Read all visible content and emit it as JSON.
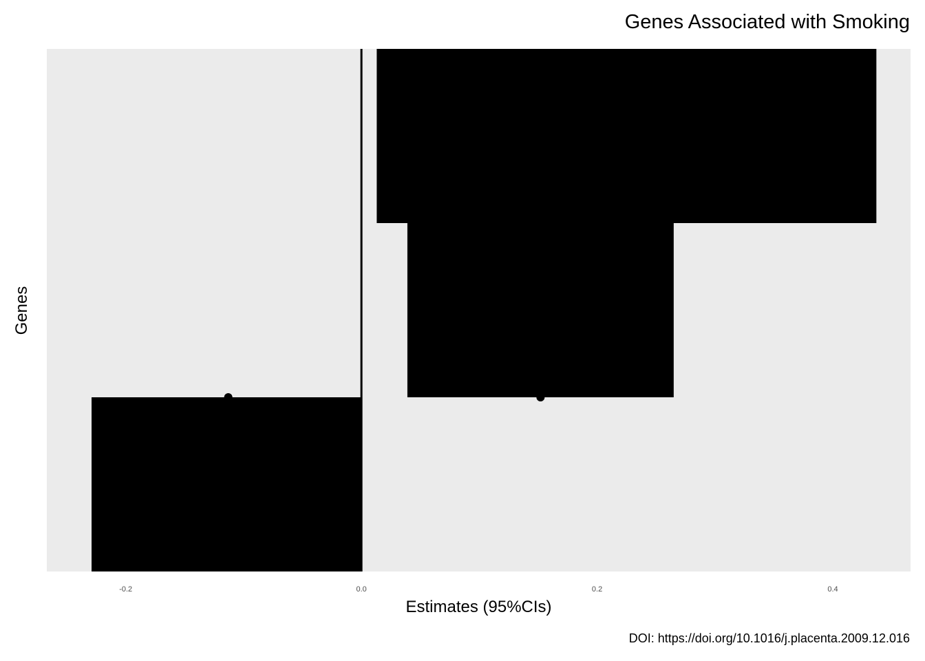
{
  "chart_data": {
    "type": "forest",
    "title": "Genes Associated with Smoking",
    "xlabel": "Estimates (95%CIs)",
    "ylabel": "Genes",
    "caption": "DOI: https://doi.org/10.1016/j.placenta.2009.12.016",
    "xlim": [
      -0.267,
      0.466
    ],
    "x_ticks": [
      -0.2,
      0.0,
      0.2,
      0.4
    ],
    "x_tick_labels": [
      "-0.2",
      "0.0",
      "0.2",
      "0.4"
    ],
    "reference_line": 0.0,
    "y_categories_count": 3,
    "y_tick_labels_shown": false,
    "points": [
      {
        "row": 1,
        "estimate": -0.113,
        "ci_low": -0.229,
        "ci_high": 0.0
      },
      {
        "row": 2,
        "estimate": 0.152,
        "ci_low": 0.039,
        "ci_high": 0.265
      },
      {
        "row": 3,
        "estimate": 0.152,
        "ci_low": 0.013,
        "ci_high": 0.437
      }
    ],
    "panel_background": "#ebebeb",
    "mark_color": "#000000",
    "grid": false
  }
}
